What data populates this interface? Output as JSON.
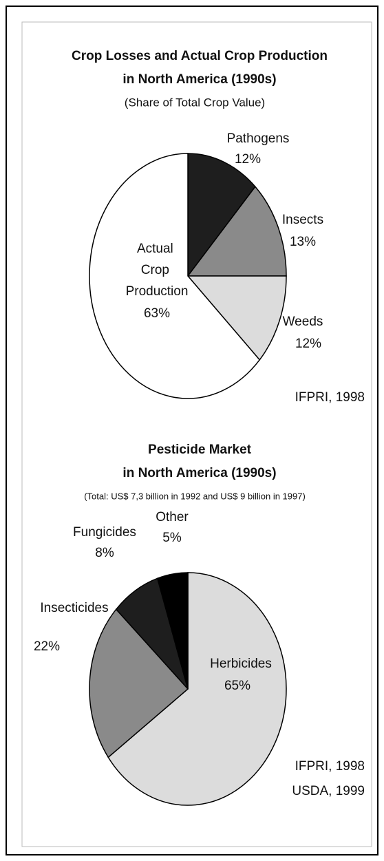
{
  "chart_data": [
    {
      "type": "pie",
      "title": [
        "Crop Losses and Actual Crop Production",
        "in North America (1990s)"
      ],
      "subtitle": "(Share of Total Crop Value)",
      "categories": [
        "Pathogens",
        "Insects",
        "Weeds",
        "Actual Crop Production"
      ],
      "values": [
        12,
        13,
        12,
        63
      ],
      "value_labels": [
        "12%",
        "13%",
        "12%",
        "63%"
      ],
      "colors": [
        "#1e1e1e",
        "#8a8a8a",
        "#dcdcdc",
        "#ffffff"
      ],
      "source": [
        "IFPRI, 1998"
      ]
    },
    {
      "type": "pie",
      "title": [
        "Pesticide Market",
        "in North America (1990s)"
      ],
      "subtitle": "(Total: US$ 7,3 billion in 1992 and US$ 9 billion in 1997)",
      "categories": [
        "Herbicides",
        "Insecticides",
        "Fungicides",
        "Other"
      ],
      "values": [
        65,
        22,
        8,
        5
      ],
      "value_labels": [
        "65%",
        "22%",
        "8%",
        "5%"
      ],
      "colors": [
        "#dcdcdc",
        "#8a8a8a",
        "#1e1e1e",
        "#000000"
      ],
      "source": [
        "IFPRI, 1998",
        "USDA, 1999"
      ]
    }
  ]
}
